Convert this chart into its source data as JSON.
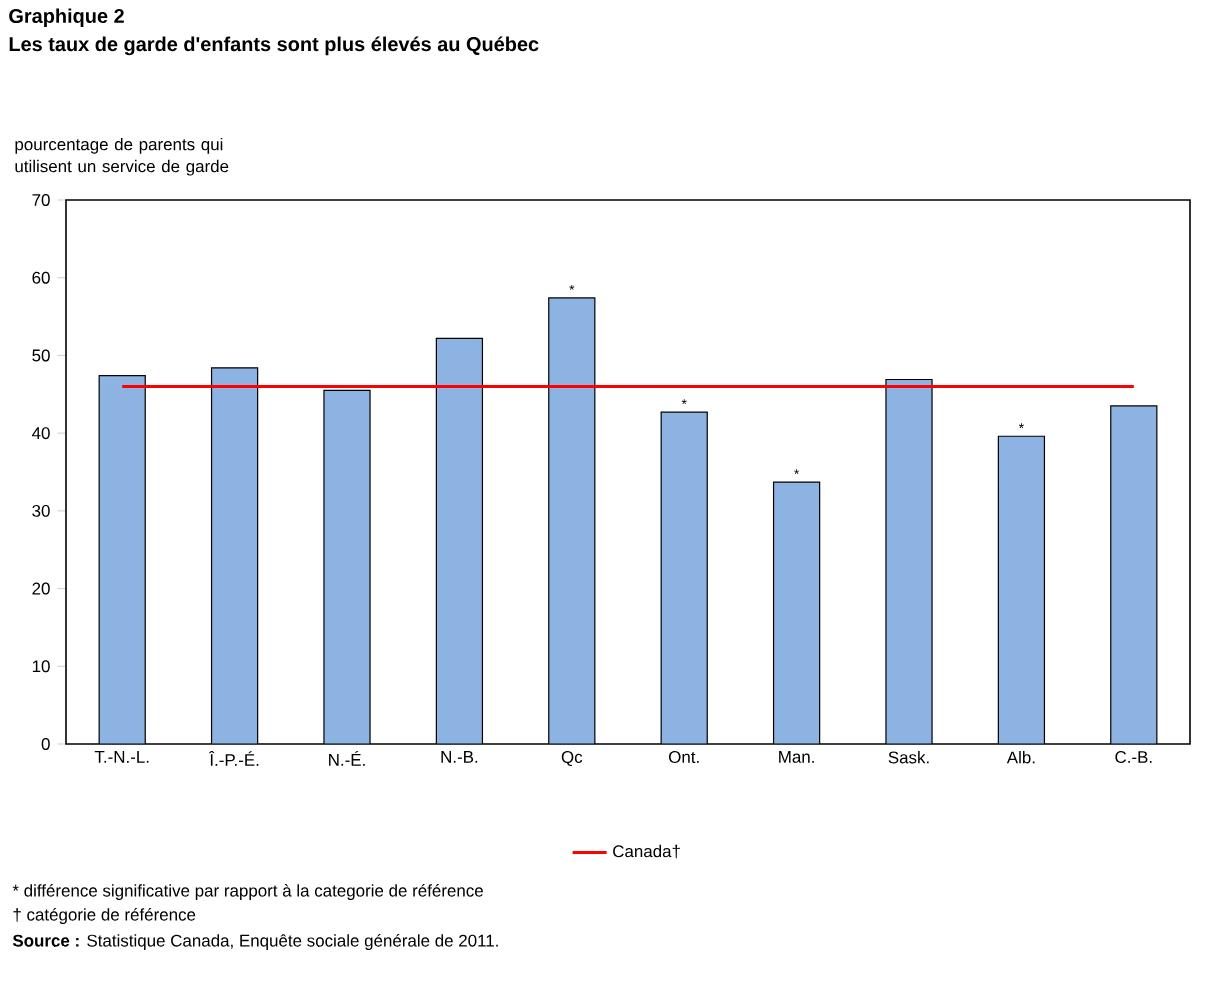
{
  "chart_data": {
    "type": "bar",
    "title": "Graphique 2",
    "subtitle": "Les taux de garde d'enfants sont plus élevés au Québec",
    "ylabel": "pourcentage de parents qui utilisent un service de garde",
    "categories": [
      "T.-N.-L.",
      "Î.-P.-É.",
      "N.-É.",
      "N.-B.",
      "Qc",
      "Ont.",
      "Man.",
      "Sask.",
      "Alb.",
      "C.-B."
    ],
    "series": [
      {
        "color": "#8db3e2",
        "values": [
          47.4,
          48.4,
          45.5,
          52.2,
          57.4,
          42.7,
          33.7,
          46.9,
          39.6,
          43.5
        ],
        "value_labels": [
          null,
          null,
          null,
          null,
          "*",
          "*",
          "*",
          null,
          "*",
          null
        ]
      },
      {
        "type": "line",
        "name": "Canada†",
        "color": "#ff0000",
        "values": [
          46.0,
          46.0,
          46.0,
          46.0,
          46.0,
          46.0,
          46.0,
          46.0,
          46.0,
          46.0
        ]
      }
    ],
    "ylim": [
      0,
      70
    ],
    "yticks": [
      0,
      10,
      20,
      30,
      40,
      50,
      60,
      70
    ],
    "legend": "bottom",
    "marker": "none",
    "annotations": [
      "* différence significative par rapport à la categorie de référence",
      "† catégorie de référence",
      "**Source :** Statistique Canada, Enquête sociale générale de 2011."
    ]
  }
}
